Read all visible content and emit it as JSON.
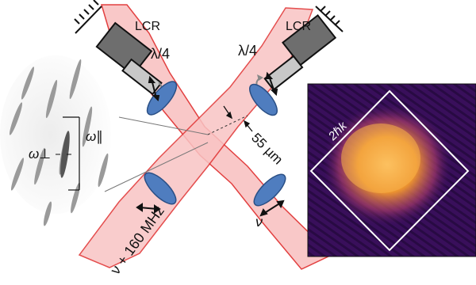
{
  "labels": {
    "lcr_left": "LCR",
    "lcr_right": "LCR",
    "waveplate_left": "λ/4",
    "waveplate_right": "λ/4",
    "omega_parallel": "ω∥",
    "omega_perp": "ω⊥",
    "spacing": "55 µm",
    "beam_left_freq": "ν + 160 MHz",
    "beam_right_freq": "ν",
    "lattice_momentum": "2ℏk"
  },
  "colors": {
    "beam_fill": "#f9c4c4",
    "beam_edge": "#e03030",
    "lcr_body": "#6e6e6e",
    "waveplate": "#c8c8c8",
    "lens": "#4f7dbf",
    "image_bg": "#3a0f5c",
    "image_glow": "#f7a23a",
    "diamond": "#ffffff"
  }
}
